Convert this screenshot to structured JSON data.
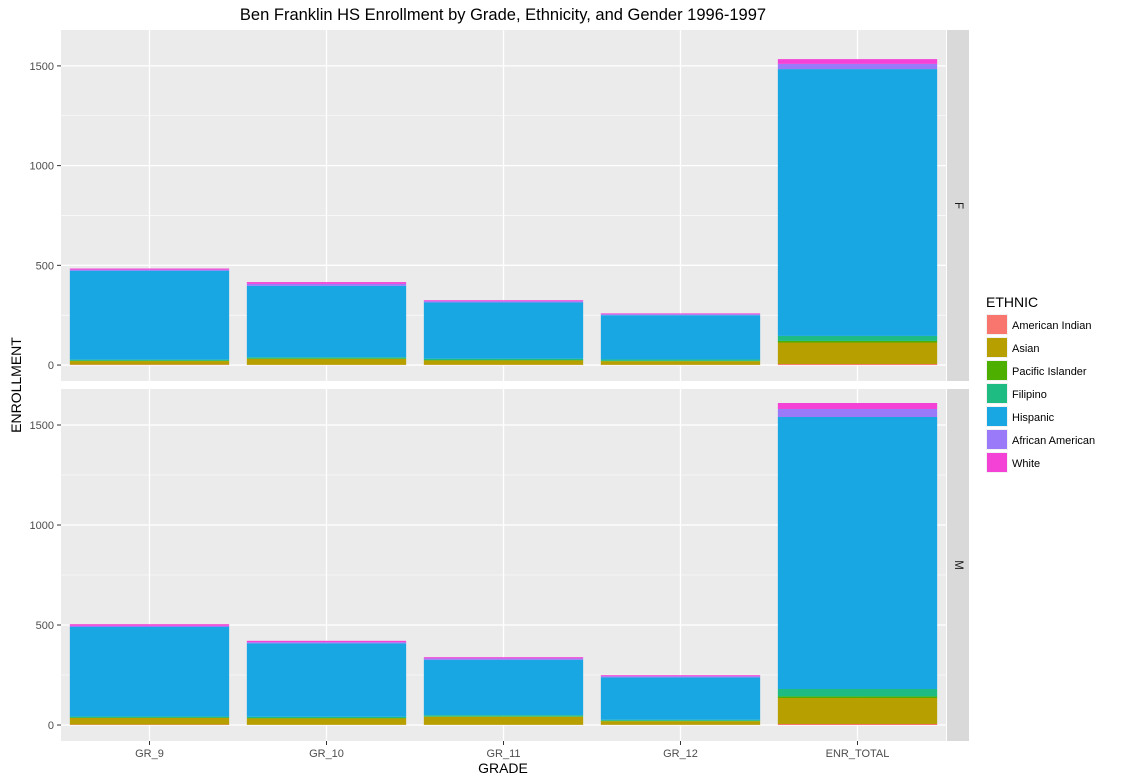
{
  "chart_data": {
    "type": "bar",
    "stacked": true,
    "title": "Ben Franklin HS Enrollment by Grade, Ethnicity, and Gender 1996-1997",
    "xlabel": "GRADE",
    "ylabel": "ENROLLMENT",
    "categories": [
      "GR_9",
      "GR_10",
      "GR_11",
      "GR_12",
      "ENR_TOTAL"
    ],
    "ylim": [
      -80,
      1680
    ],
    "yticks": [
      0,
      500,
      1000,
      1500
    ],
    "grid": true,
    "legend": {
      "title": "ETHNIC",
      "placement": "right",
      "entries": [
        "American Indian",
        "Asian",
        "Pacific Islander",
        "Filipino",
        "Hispanic",
        "African American",
        "White"
      ]
    },
    "colors": {
      "American Indian": "#F8766D",
      "Asian": "#B79F00",
      "Pacific Islander": "#4DAF00",
      "Filipino": "#1EBB83",
      "Hispanic": "#19A7E3",
      "African American": "#9B7AF9",
      "White": "#F442D6"
    },
    "panels": [
      {
        "facet": "F",
        "series": [
          {
            "name": "American Indian",
            "values": [
              2,
              1,
              1,
              1,
              5
            ]
          },
          {
            "name": "Asian",
            "values": [
              18,
              30,
              22,
              18,
              108
            ]
          },
          {
            "name": "Pacific Islander",
            "values": [
              2,
              2,
              2,
              2,
              8
            ]
          },
          {
            "name": "Filipino",
            "values": [
              5,
              6,
              7,
              7,
              25
            ]
          },
          {
            "name": "Hispanic",
            "values": [
              446,
              358,
              282,
              222,
              1338
            ]
          },
          {
            "name": "African American",
            "values": [
              5,
              10,
              6,
              5,
              26
            ]
          },
          {
            "name": "White",
            "values": [
              6,
              9,
              5,
              4,
              24
            ]
          }
        ]
      },
      {
        "facet": "M",
        "series": [
          {
            "name": "American Indian",
            "values": [
              2,
              1,
              1,
              1,
              5
            ]
          },
          {
            "name": "Asian",
            "values": [
              33,
              32,
              40,
              18,
              130
            ]
          },
          {
            "name": "Pacific Islander",
            "values": [
              2,
              2,
              2,
              2,
              8
            ]
          },
          {
            "name": "Filipino",
            "values": [
              5,
              6,
              6,
              5,
              37
            ]
          },
          {
            "name": "Hispanic",
            "values": [
              448,
              367,
              277,
              212,
              1360
            ]
          },
          {
            "name": "African American",
            "values": [
              6,
              6,
              7,
              6,
              40
            ]
          },
          {
            "name": "White",
            "values": [
              8,
              7,
              6,
              5,
              30
            ]
          }
        ]
      }
    ]
  }
}
